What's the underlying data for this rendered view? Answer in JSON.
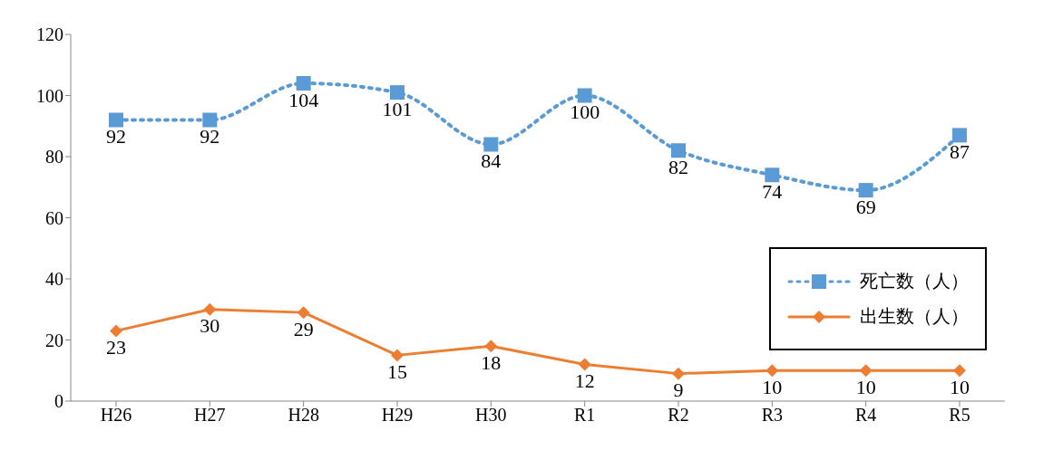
{
  "chart_data": {
    "type": "line",
    "categories": [
      "H26",
      "H27",
      "H28",
      "H29",
      "H30",
      "R1",
      "R2",
      "R3",
      "R4",
      "R5"
    ],
    "series": [
      {
        "name": "死亡数（人）",
        "color": "#5b9bd5",
        "marker": "square",
        "line_style": "dotted",
        "values": [
          92,
          92,
          104,
          101,
          84,
          100,
          82,
          74,
          69,
          87
        ]
      },
      {
        "name": "出生数（人）",
        "color": "#ed7d31",
        "marker": "diamond",
        "line_style": "solid",
        "values": [
          23,
          30,
          29,
          15,
          18,
          12,
          9,
          10,
          10,
          10
        ]
      }
    ],
    "ylim": [
      0,
      120
    ],
    "yticks": [
      0,
      20,
      40,
      60,
      80,
      100,
      120
    ],
    "grid": false,
    "legend": "right",
    "data_labels": true
  }
}
